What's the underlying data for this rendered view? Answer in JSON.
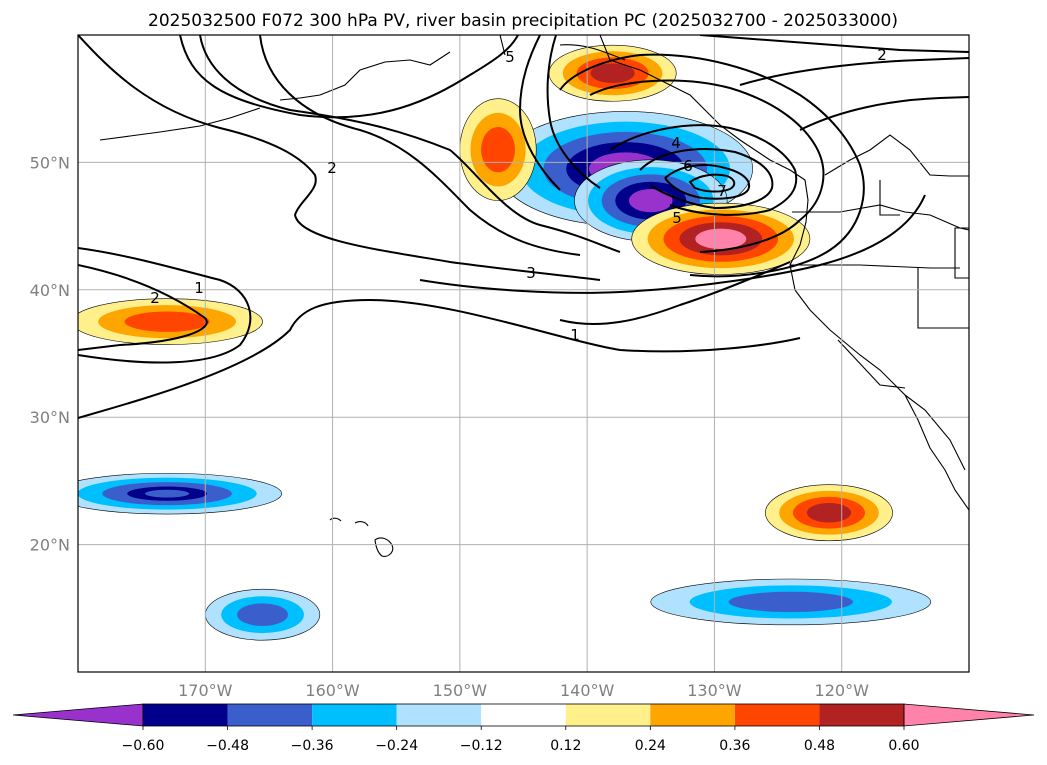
{
  "chart_data": {
    "type": "contour-map",
    "title": "2025032500 F072 300 hPa PV, river basin precipitation PC (2025032700 - 2025033000)",
    "projection": "PlateCarree",
    "extent": {
      "lon": [
        -180,
        -110
      ],
      "lat": [
        10,
        60
      ]
    },
    "grid": true,
    "x_ticks": [
      {
        "lon": -170,
        "label": "170°W"
      },
      {
        "lon": -160,
        "label": "160°W"
      },
      {
        "lon": -150,
        "label": "150°W"
      },
      {
        "lon": -140,
        "label": "140°W"
      },
      {
        "lon": -130,
        "label": "130°W"
      },
      {
        "lon": -120,
        "label": "120°W"
      }
    ],
    "y_ticks": [
      {
        "lat": 20,
        "label": "20°N"
      },
      {
        "lat": 30,
        "label": "30°N"
      },
      {
        "lat": 40,
        "label": "40°N"
      },
      {
        "lat": 50,
        "label": "50°N"
      }
    ],
    "filled_field": {
      "name": "river basin precipitation PC",
      "levels": [
        -0.6,
        -0.48,
        -0.36,
        -0.24,
        -0.12,
        0.12,
        0.24,
        0.36,
        0.48,
        0.6
      ],
      "level_labels": [
        "−0.60",
        "−0.48",
        "−0.36",
        "−0.24",
        "−0.12",
        "0.12",
        "0.24",
        "0.36",
        "0.48",
        "0.60"
      ],
      "colors": [
        "#9932cc",
        "#00008b",
        "#3a5fcd",
        "#00bfff",
        "#b0e2ff",
        "#ffffff",
        "#fff08c",
        "#ffa500",
        "#ff4500",
        "#b22222",
        "#ff82ab"
      ],
      "extend": "both"
    },
    "contour_field": {
      "name": "300 hPa PV",
      "labeled_levels": [
        1,
        2,
        3,
        4,
        5,
        6,
        7
      ]
    },
    "regions": [
      {
        "lon": -137,
        "lat": 49.5,
        "rx": 10,
        "ry": 4.5,
        "value": -0.66
      },
      {
        "lon": -135,
        "lat": 47,
        "rx": 6,
        "ry": 3.2,
        "value": -0.66
      },
      {
        "lon": -129.5,
        "lat": 44,
        "rx": 7,
        "ry": 2.8,
        "value": 0.66
      },
      {
        "lon": -147,
        "lat": 51,
        "rx": 3,
        "ry": 4,
        "value": 0.4
      },
      {
        "lon": -138,
        "lat": 57,
        "rx": 5,
        "ry": 2.2,
        "value": 0.52
      },
      {
        "lon": -173,
        "lat": 37.5,
        "rx": 7.5,
        "ry": 1.8,
        "value": 0.45
      },
      {
        "lon": -173,
        "lat": 24,
        "rx": 9,
        "ry": 1.6,
        "value": -0.48
      },
      {
        "lon": -121,
        "lat": 22.5,
        "rx": 5,
        "ry": 2.2,
        "value": 0.5
      },
      {
        "lon": -124,
        "lat": 15.5,
        "rx": 11,
        "ry": 1.8,
        "value": -0.45
      },
      {
        "lon": -165.5,
        "lat": 14.5,
        "rx": 4.5,
        "ry": 2,
        "value": -0.45
      }
    ],
    "colorbar_ticks": [
      "−0.60",
      "−0.48",
      "−0.36",
      "−0.24",
      "−0.12",
      "0.12",
      "0.24",
      "0.36",
      "0.48",
      "0.60"
    ]
  }
}
